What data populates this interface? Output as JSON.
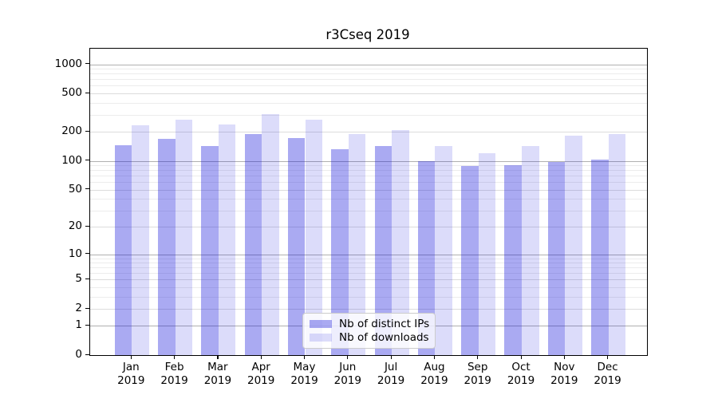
{
  "chart_data": {
    "type": "bar",
    "title": "r3Cseq 2019",
    "categories": [
      "Jan",
      "Feb",
      "Mar",
      "Apr",
      "May",
      "Jun",
      "Jul",
      "Aug",
      "Sep",
      "Oct",
      "Nov",
      "Dec"
    ],
    "x_tick_year": "2019",
    "series": [
      {
        "name": "Nb of distinct IPs",
        "color": "#aaaaf2",
        "rgba": "rgba(20,20,220,0.36)",
        "values": [
          145,
          168,
          143,
          190,
          172,
          131,
          143,
          100,
          88,
          90,
          98,
          103
        ]
      },
      {
        "name": "Nb of downloads",
        "color": "#dcdcfa",
        "rgba": "rgba(20,20,220,0.15)",
        "values": [
          235,
          268,
          237,
          308,
          267,
          190,
          210,
          143,
          120,
          142,
          182,
          190
        ]
      }
    ],
    "yscale": "log1p",
    "ylim": [
      0,
      1450
    ],
    "yticks": [
      0,
      1,
      2,
      5,
      10,
      20,
      50,
      100,
      200,
      500,
      1000
    ],
    "yticks_minor": [
      3,
      4,
      6,
      7,
      8,
      9,
      30,
      40,
      60,
      70,
      80,
      90,
      300,
      400,
      600,
      700,
      800,
      900
    ],
    "grid": {
      "on": true,
      "major_color": "#b0b0b0",
      "mid_color": "#dcdcdc",
      "minor_color": "#ececec"
    },
    "legend_position": "lower center",
    "xlabel": "",
    "ylabel": ""
  }
}
